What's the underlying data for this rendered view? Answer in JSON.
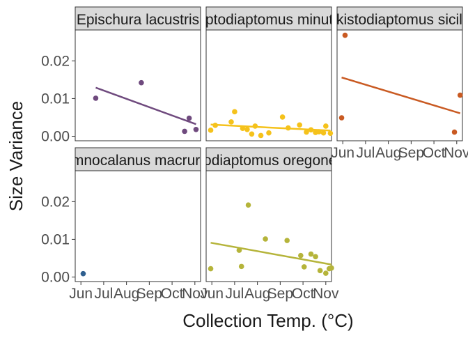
{
  "chart_data": {
    "type": "scatter",
    "xlabel": "Collection Temp. (°C)",
    "ylabel": "Size Variance",
    "x_ticks": [
      "Jun",
      "Jul",
      "Aug",
      "Sep",
      "Oct",
      "Nov"
    ],
    "y_ticks": [
      0.0,
      0.01,
      0.02
    ],
    "y_tick_labels": [
      "0.00",
      "0.01",
      "0.02"
    ],
    "ylim": [
      -0.0012,
      0.0282
    ],
    "xlim": [
      5.75,
      11.25
    ],
    "panels": [
      {
        "title": "Epischura lacustris",
        "color": "#6f4a7e",
        "points": [
          {
            "x": 6.65,
            "y": 0.0101
          },
          {
            "x": 8.65,
            "y": 0.0142
          },
          {
            "x": 10.55,
            "y": 0.0013
          },
          {
            "x": 10.75,
            "y": 0.0048
          },
          {
            "x": 11.05,
            "y": 0.0018
          }
        ],
        "fit": [
          {
            "x": 6.65,
            "y": 0.0129
          },
          {
            "x": 11.05,
            "y": 0.0032
          }
        ]
      },
      {
        "title": "Leptodiaptomus minutus",
        "color": "#f5c21b",
        "points": [
          {
            "x": 5.95,
            "y": 0.0016
          },
          {
            "x": 6.15,
            "y": 0.0029
          },
          {
            "x": 6.85,
            "y": 0.0038
          },
          {
            "x": 7.0,
            "y": 0.0065
          },
          {
            "x": 7.35,
            "y": 0.0021
          },
          {
            "x": 7.55,
            "y": 0.0018
          },
          {
            "x": 7.75,
            "y": 0.0006
          },
          {
            "x": 7.9,
            "y": 0.0027
          },
          {
            "x": 8.15,
            "y": 0.0002
          },
          {
            "x": 8.5,
            "y": 0.0009
          },
          {
            "x": 9.1,
            "y": 0.0051
          },
          {
            "x": 9.35,
            "y": 0.0022
          },
          {
            "x": 9.85,
            "y": 0.003
          },
          {
            "x": 10.15,
            "y": 0.0011
          },
          {
            "x": 10.35,
            "y": 0.0017
          },
          {
            "x": 10.55,
            "y": 0.001
          },
          {
            "x": 10.7,
            "y": 0.0012
          },
          {
            "x": 10.9,
            "y": 0.0009
          },
          {
            "x": 11.0,
            "y": 0.0027
          },
          {
            "x": 11.2,
            "y": 0.0008
          }
        ],
        "fit": [
          {
            "x": 5.95,
            "y": 0.0031
          },
          {
            "x": 11.2,
            "y": 0.0015
          }
        ]
      },
      {
        "title": "Skistodiaptomus sicilis",
        "color": "#c95a22",
        "points": [
          {
            "x": 5.95,
            "y": 0.0049
          },
          {
            "x": 6.1,
            "y": 0.0268
          },
          {
            "x": 10.9,
            "y": 0.0011
          },
          {
            "x": 11.15,
            "y": 0.0109
          }
        ],
        "fit": [
          {
            "x": 5.95,
            "y": 0.0156
          },
          {
            "x": 11.15,
            "y": 0.0061
          }
        ]
      },
      {
        "title": "Limnocalanus macrurus",
        "color": "#2f5f8f",
        "points": [
          {
            "x": 6.1,
            "y": 0.0009
          }
        ],
        "fit": []
      },
      {
        "title": "Leptodiaptomus oregonensis",
        "color": "#b5b43a",
        "points": [
          {
            "x": 5.95,
            "y": 0.0022
          },
          {
            "x": 7.2,
            "y": 0.0071
          },
          {
            "x": 7.3,
            "y": 0.0028
          },
          {
            "x": 7.6,
            "y": 0.0191
          },
          {
            "x": 8.35,
            "y": 0.0101
          },
          {
            "x": 9.3,
            "y": 0.0097
          },
          {
            "x": 9.9,
            "y": 0.0057
          },
          {
            "x": 10.05,
            "y": 0.0027
          },
          {
            "x": 10.35,
            "y": 0.0061
          },
          {
            "x": 10.55,
            "y": 0.0054
          },
          {
            "x": 10.75,
            "y": 0.0017
          },
          {
            "x": 11.0,
            "y": 0.001
          },
          {
            "x": 11.15,
            "y": 0.0022
          },
          {
            "x": 11.25,
            "y": 0.0024
          }
        ],
        "fit": [
          {
            "x": 5.95,
            "y": 0.0091
          },
          {
            "x": 11.25,
            "y": 0.0033
          }
        ]
      }
    ]
  }
}
